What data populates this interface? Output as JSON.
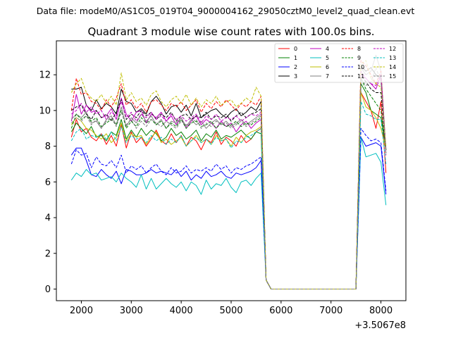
{
  "chart_data": {
    "type": "line",
    "suptitle": "Data file: modeM0/AS1C05_019T04_9000004162_29050cztM0_level2_quad_clean.evt",
    "title": "Quadrant 3 module wise count rates with 100.0s bins.",
    "xlabel": "",
    "ylabel": "",
    "x_offset_label": "+3.5067e8",
    "xlim": [
      1500,
      8500
    ],
    "ylim": [
      -0.65,
      13.9
    ],
    "x_ticks": [
      2000,
      3000,
      4000,
      5000,
      6000,
      7000,
      8000
    ],
    "x_tick_labels": [
      "2000",
      "3000",
      "4000",
      "5000",
      "6000",
      "7000",
      "8000"
    ],
    "y_ticks": [
      0,
      2,
      4,
      6,
      8,
      10,
      12
    ],
    "y_tick_labels": [
      "0",
      "2",
      "4",
      "6",
      "8",
      "10",
      "12"
    ],
    "grid": false,
    "legend_position": "top-right",
    "x_start": 1800,
    "x_step": 100,
    "series": [
      {
        "name": "0",
        "color": "#ff0000",
        "dash": "solid",
        "values": [
          8.5,
          9.5,
          8.8,
          9.0,
          8.5,
          8.3,
          8.7,
          8.1,
          8.6,
          8.0,
          9.2,
          7.9,
          8.8,
          8.2,
          8.5,
          8.0,
          8.4,
          8.9,
          8.3,
          8.1,
          8.7,
          8.2,
          8.6,
          8.0,
          8.5,
          8.3,
          7.8,
          8.4,
          8.2,
          8.8,
          8.1,
          8.5,
          8.3,
          8.0,
          8.6,
          8.2,
          8.4,
          8.8,
          9.0,
          0.5,
          0.0,
          0.0,
          0.0,
          0.0,
          0.0,
          0.0,
          0.0,
          0.0,
          0.0,
          0.0,
          0.0,
          0.0,
          0.0,
          0.0,
          0.0,
          0.0,
          0.0,
          0.0,
          11.0,
          10.5,
          10.0,
          9.0,
          10.5,
          6.5
        ]
      },
      {
        "name": "1",
        "color": "#008000",
        "dash": "solid",
        "values": [
          8.8,
          9.3,
          9.0,
          8.7,
          9.1,
          8.5,
          8.6,
          8.3,
          8.8,
          8.6,
          9.5,
          8.4,
          8.9,
          8.5,
          9.0,
          8.6,
          8.9,
          8.7,
          8.3,
          8.5,
          9.0,
          8.6,
          8.8,
          8.4,
          8.6,
          8.9,
          8.3,
          8.7,
          8.5,
          8.9,
          8.4,
          8.6,
          8.5,
          8.7,
          8.9,
          8.6,
          8.4,
          8.8,
          8.7,
          0.5,
          0.0,
          0.0,
          0.0,
          0.0,
          0.0,
          0.0,
          0.0,
          0.0,
          0.0,
          0.0,
          0.0,
          0.0,
          0.0,
          0.0,
          0.0,
          0.0,
          0.0,
          0.0,
          11.5,
          11.0,
          10.0,
          9.8,
          9.6,
          7.9
        ]
      },
      {
        "name": "2",
        "color": "#0000ff",
        "dash": "solid",
        "values": [
          7.5,
          7.9,
          7.9,
          7.2,
          6.4,
          6.3,
          6.7,
          6.4,
          6.2,
          6.6,
          5.9,
          6.7,
          6.6,
          6.4,
          6.4,
          6.5,
          6.7,
          6.5,
          6.6,
          6.5,
          6.4,
          6.7,
          6.3,
          6.6,
          6.1,
          6.4,
          6.2,
          6.6,
          6.3,
          6.4,
          6.6,
          6.3,
          6.2,
          6.5,
          6.4,
          6.5,
          6.6,
          6.8,
          7.2,
          0.5,
          0.0,
          0.0,
          0.0,
          0.0,
          0.0,
          0.0,
          0.0,
          0.0,
          0.0,
          0.0,
          0.0,
          0.0,
          0.0,
          0.0,
          0.0,
          0.0,
          0.0,
          0.0,
          8.5,
          8.0,
          8.1,
          8.2,
          8.0,
          5.3
        ]
      },
      {
        "name": "3",
        "color": "#000000",
        "dash": "solid",
        "values": [
          11.2,
          11.2,
          11.3,
          10.3,
          10.0,
          10.6,
          10.1,
          10.4,
          10.2,
          9.8,
          11.2,
          10.5,
          10.4,
          9.9,
          10.1,
          9.8,
          10.5,
          10.8,
          10.4,
          9.8,
          10.2,
          10.3,
          9.9,
          10.3,
          9.7,
          10.4,
          9.6,
          9.8,
          10.0,
          10.1,
          9.8,
          9.6,
          9.9,
          10.1,
          9.7,
          9.9,
          10.2,
          10.0,
          10.5,
          0.5,
          0.0,
          0.0,
          0.0,
          0.0,
          0.0,
          0.0,
          0.0,
          0.0,
          0.0,
          0.0,
          0.0,
          0.0,
          0.0,
          0.0,
          0.0,
          0.0,
          0.0,
          0.0,
          12.5,
          12.2,
          12.4,
          12.0,
          11.8,
          7.8
        ]
      },
      {
        "name": "4",
        "color": "#bf00bf",
        "dash": "solid",
        "values": [
          9.4,
          10.9,
          9.8,
          10.3,
          9.9,
          10.0,
          9.6,
          9.7,
          10.1,
          9.5,
          10.7,
          9.8,
          9.4,
          9.9,
          10.0,
          9.3,
          9.8,
          9.6,
          9.9,
          9.4,
          9.7,
          9.2,
          9.6,
          9.0,
          9.4,
          9.7,
          9.2,
          9.5,
          9.3,
          9.0,
          9.4,
          9.1,
          9.3,
          8.8,
          9.2,
          9.4,
          9.0,
          9.3,
          9.5,
          0.5,
          0.0,
          0.0,
          0.0,
          0.0,
          0.0,
          0.0,
          0.0,
          0.0,
          0.0,
          0.0,
          0.0,
          0.0,
          0.0,
          0.0,
          0.0,
          0.0,
          0.0,
          0.0,
          12.0,
          11.8,
          11.5,
          11.2,
          12.0,
          7.8
        ]
      },
      {
        "name": "5",
        "color": "#00bfbf",
        "dash": "solid",
        "values": [
          6.1,
          6.5,
          6.3,
          6.7,
          6.4,
          6.5,
          6.1,
          6.2,
          6.3,
          6.0,
          6.5,
          6.2,
          6.0,
          5.7,
          6.4,
          5.6,
          6.2,
          5.6,
          5.9,
          6.2,
          5.9,
          5.7,
          6.0,
          5.5,
          6.0,
          5.8,
          5.3,
          6.1,
          5.6,
          5.9,
          5.8,
          6.2,
          5.7,
          5.4,
          6.0,
          6.1,
          5.8,
          6.2,
          6.5,
          0.5,
          0.0,
          0.0,
          0.0,
          0.0,
          0.0,
          0.0,
          0.0,
          0.0,
          0.0,
          0.0,
          0.0,
          0.0,
          0.0,
          0.0,
          0.0,
          0.0,
          0.0,
          0.0,
          8.5,
          7.4,
          7.5,
          7.6,
          7.1,
          4.7
        ]
      },
      {
        "name": "6",
        "color": "#bfbf00",
        "dash": "solid",
        "values": [
          9.2,
          9.6,
          9.4,
          9.0,
          8.9,
          8.6,
          8.4,
          8.7,
          8.2,
          8.5,
          9.3,
          8.3,
          8.7,
          8.5,
          8.6,
          8.1,
          8.5,
          8.8,
          8.2,
          8.4,
          8.1,
          8.3,
          8.5,
          8.0,
          8.3,
          8.6,
          8.2,
          8.4,
          8.1,
          8.6,
          8.3,
          8.4,
          8.0,
          8.5,
          8.2,
          8.6,
          8.8,
          8.9,
          9.1,
          0.5,
          0.0,
          0.0,
          0.0,
          0.0,
          0.0,
          0.0,
          0.0,
          0.0,
          0.0,
          0.0,
          0.0,
          0.0,
          0.0,
          0.0,
          0.0,
          0.0,
          0.0,
          0.0,
          11.0,
          10.2,
          10.0,
          9.6,
          9.0,
          7.8
        ]
      },
      {
        "name": "7",
        "color": "#808080",
        "dash": "solid",
        "values": [
          9.5,
          9.8,
          9.6,
          9.9,
          9.3,
          9.4,
          9.0,
          9.5,
          9.7,
          9.2,
          10.2,
          9.1,
          9.6,
          9.3,
          9.8,
          9.4,
          9.7,
          9.2,
          9.5,
          9.0,
          9.4,
          9.3,
          9.6,
          9.1,
          9.5,
          9.2,
          9.4,
          9.0,
          9.3,
          9.5,
          9.2,
          9.4,
          9.1,
          9.3,
          9.5,
          9.2,
          9.4,
          9.6,
          9.8,
          0.5,
          0.0,
          0.0,
          0.0,
          0.0,
          0.0,
          0.0,
          0.0,
          0.0,
          0.0,
          0.0,
          0.0,
          0.0,
          0.0,
          0.0,
          0.0,
          0.0,
          0.0,
          0.0,
          12.4,
          12.0,
          12.2,
          13.1,
          12.2,
          7.8
        ]
      },
      {
        "name": "8",
        "color": "#ff0000",
        "dash": "dashed",
        "values": [
          10.0,
          11.8,
          10.9,
          11.0,
          10.5,
          10.4,
          10.0,
          10.6,
          10.2,
          10.7,
          11.5,
          10.3,
          10.6,
          10.1,
          10.4,
          9.9,
          10.5,
          10.6,
          10.3,
          10.0,
          10.4,
          10.2,
          10.5,
          10.0,
          10.3,
          10.6,
          9.9,
          10.4,
          10.1,
          10.5,
          10.2,
          10.6,
          10.3,
          10.0,
          10.4,
          10.2,
          10.5,
          10.3,
          10.8,
          0.5,
          0.0,
          0.0,
          0.0,
          0.0,
          0.0,
          0.0,
          0.0,
          0.0,
          0.0,
          0.0,
          0.0,
          0.0,
          0.0,
          0.0,
          0.0,
          0.0,
          0.0,
          0.0,
          12.8,
          12.5,
          12.0,
          11.5,
          12.2,
          7.5
        ]
      },
      {
        "name": "9",
        "color": "#008000",
        "dash": "dashed",
        "values": [
          9.0,
          9.8,
          9.5,
          9.7,
          9.4,
          9.6,
          9.1,
          9.3,
          9.5,
          9.2,
          10.0,
          9.0,
          9.4,
          9.1,
          9.6,
          9.3,
          9.5,
          9.2,
          9.4,
          9.0,
          9.3,
          9.1,
          9.5,
          9.0,
          9.3,
          9.4,
          9.1,
          9.2,
          9.4,
          9.0,
          9.3,
          9.1,
          9.2,
          9.4,
          9.1,
          9.3,
          9.2,
          9.4,
          9.6,
          0.5,
          0.0,
          0.0,
          0.0,
          0.0,
          0.0,
          0.0,
          0.0,
          0.0,
          0.0,
          0.0,
          0.0,
          0.0,
          0.0,
          0.0,
          0.0,
          0.0,
          0.0,
          0.0,
          11.8,
          11.2,
          10.8,
          10.4,
          10.0,
          7.8
        ]
      },
      {
        "name": "10",
        "color": "#0000ff",
        "dash": "dashed",
        "values": [
          7.0,
          7.8,
          7.5,
          7.6,
          6.8,
          7.4,
          7.0,
          6.9,
          7.2,
          6.8,
          7.5,
          6.5,
          6.9,
          6.7,
          6.9,
          6.5,
          6.8,
          7.0,
          6.6,
          6.4,
          6.8,
          6.5,
          6.6,
          6.9,
          6.5,
          6.7,
          6.6,
          6.8,
          6.6,
          7.0,
          6.7,
          6.9,
          6.5,
          6.8,
          6.7,
          6.9,
          7.0,
          7.2,
          7.4,
          0.5,
          0.0,
          0.0,
          0.0,
          0.0,
          0.0,
          0.0,
          0.0,
          0.0,
          0.0,
          0.0,
          0.0,
          0.0,
          0.0,
          0.0,
          0.0,
          0.0,
          0.0,
          0.0,
          9.0,
          8.6,
          8.3,
          8.4,
          8.2,
          5.5
        ]
      },
      {
        "name": "11",
        "color": "#000000",
        "dash": "dashed",
        "values": [
          10.0,
          10.2,
          10.3,
          9.8,
          9.5,
          10.0,
          9.6,
          9.8,
          9.4,
          9.9,
          10.6,
          9.5,
          9.8,
          9.6,
          10.0,
          9.7,
          9.9,
          9.5,
          9.8,
          9.6,
          9.9,
          9.4,
          9.7,
          9.8,
          9.5,
          9.7,
          9.6,
          9.9,
          9.5,
          9.7,
          9.6,
          9.8,
          9.4,
          9.7,
          9.9,
          9.6,
          9.8,
          9.9,
          10.1,
          0.5,
          0.0,
          0.0,
          0.0,
          0.0,
          0.0,
          0.0,
          0.0,
          0.0,
          0.0,
          0.0,
          0.0,
          0.0,
          0.0,
          0.0,
          0.0,
          0.0,
          0.0,
          0.0,
          12.0,
          11.6,
          11.2,
          11.0,
          11.0,
          7.6
        ]
      },
      {
        "name": "12",
        "color": "#bf00bf",
        "dash": "dashed",
        "values": [
          9.8,
          10.0,
          10.4,
          9.9,
          10.2,
          9.8,
          10.0,
          9.5,
          9.9,
          9.7,
          10.5,
          9.6,
          9.9,
          9.4,
          9.8,
          9.6,
          9.9,
          9.5,
          9.7,
          9.4,
          9.8,
          9.5,
          9.7,
          9.4,
          9.6,
          9.8,
          9.3,
          9.7,
          9.5,
          9.8,
          9.4,
          9.6,
          9.5,
          9.7,
          9.4,
          9.6,
          9.8,
          9.7,
          9.9,
          0.5,
          0.0,
          0.0,
          0.0,
          0.0,
          0.0,
          0.0,
          0.0,
          0.0,
          0.0,
          0.0,
          0.0,
          0.0,
          0.0,
          0.0,
          0.0,
          0.0,
          0.0,
          0.0,
          12.2,
          11.8,
          11.5,
          11.4,
          12.0,
          7.5
        ]
      },
      {
        "name": "13",
        "color": "#00bfbf",
        "dash": "dashed",
        "values": [
          8.3,
          8.8,
          9.0,
          8.4,
          8.6,
          8.5,
          8.7,
          8.4,
          8.8,
          8.3,
          9.1,
          8.2,
          8.6,
          8.4,
          8.5,
          8.2,
          8.6,
          8.3,
          8.5,
          8.1,
          8.4,
          8.2,
          8.6,
          8.0,
          8.3,
          8.5,
          8.2,
          8.4,
          8.1,
          8.5,
          8.3,
          8.4,
          7.9,
          8.3,
          8.2,
          8.5,
          8.6,
          8.8,
          9.0,
          0.5,
          0.0,
          0.0,
          0.0,
          0.0,
          0.0,
          0.0,
          0.0,
          0.0,
          0.0,
          0.0,
          0.0,
          0.0,
          0.0,
          0.0,
          0.0,
          0.0,
          0.0,
          0.0,
          10.5,
          9.8,
          9.7,
          9.5,
          9.5,
          7.0
        ]
      },
      {
        "name": "14",
        "color": "#bfbf00",
        "dash": "dashed",
        "values": [
          11.0,
          11.5,
          11.8,
          11.0,
          10.7,
          10.5,
          10.9,
          10.4,
          10.8,
          10.3,
          12.1,
          10.6,
          11.0,
          10.5,
          10.7,
          10.3,
          10.9,
          11.1,
          10.5,
          10.2,
          10.6,
          10.8,
          10.4,
          10.9,
          10.3,
          10.7,
          10.2,
          10.6,
          10.4,
          10.8,
          10.3,
          10.5,
          10.6,
          10.2,
          10.4,
          10.7,
          10.5,
          11.3,
          10.8,
          0.5,
          0.0,
          0.0,
          0.0,
          0.0,
          0.0,
          0.0,
          0.0,
          0.0,
          0.0,
          0.0,
          0.0,
          0.0,
          0.0,
          0.0,
          0.0,
          0.0,
          0.0,
          0.0,
          12.6,
          12.8,
          11.8,
          11.5,
          11.3,
          8.0
        ]
      },
      {
        "name": "15",
        "color": "#808080",
        "dash": "dashed",
        "values": [
          9.3,
          9.6,
          9.4,
          9.7,
          9.2,
          9.5,
          9.0,
          9.4,
          9.6,
          9.1,
          9.9,
          9.2,
          9.5,
          9.0,
          9.4,
          9.1,
          9.5,
          9.3,
          9.1,
          9.4,
          9.2,
          9.0,
          9.4,
          9.2,
          9.3,
          9.5,
          9.0,
          9.3,
          9.1,
          9.4,
          9.2,
          9.3,
          9.0,
          9.2,
          9.4,
          9.1,
          9.3,
          9.5,
          9.7,
          0.5,
          0.0,
          0.0,
          0.0,
          0.0,
          0.0,
          0.0,
          0.0,
          0.0,
          0.0,
          0.0,
          0.0,
          0.0,
          0.0,
          0.0,
          0.0,
          0.0,
          0.0,
          0.0,
          11.8,
          11.4,
          11.6,
          12.4,
          11.6,
          7.6
        ]
      }
    ]
  }
}
